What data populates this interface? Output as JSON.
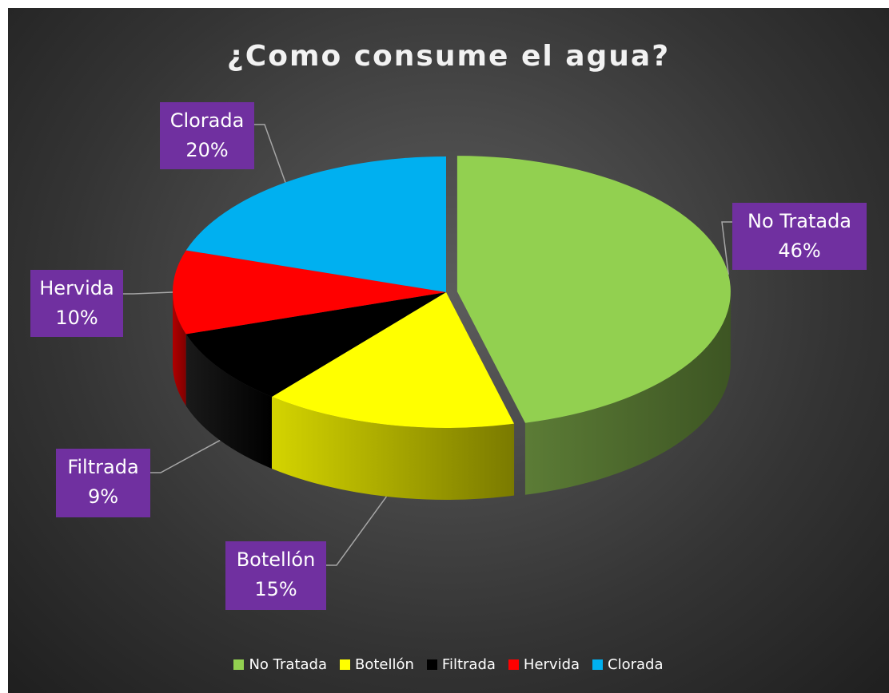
{
  "chart_data": {
    "type": "pie",
    "title": "¿Como consume el agua?",
    "categories": [
      "No Tratada",
      "Botellón",
      "Filtrada",
      "Hervida",
      "Clorada"
    ],
    "values": [
      46,
      15,
      9,
      10,
      20
    ],
    "value_labels": [
      "46%",
      "15%",
      "9%",
      "10%",
      "20%"
    ],
    "colors": [
      "#92d050",
      "#ffff00",
      "#000000",
      "#ff0000",
      "#00b0f0"
    ],
    "legend_position": "bottom",
    "style": "3d-exploded"
  }
}
